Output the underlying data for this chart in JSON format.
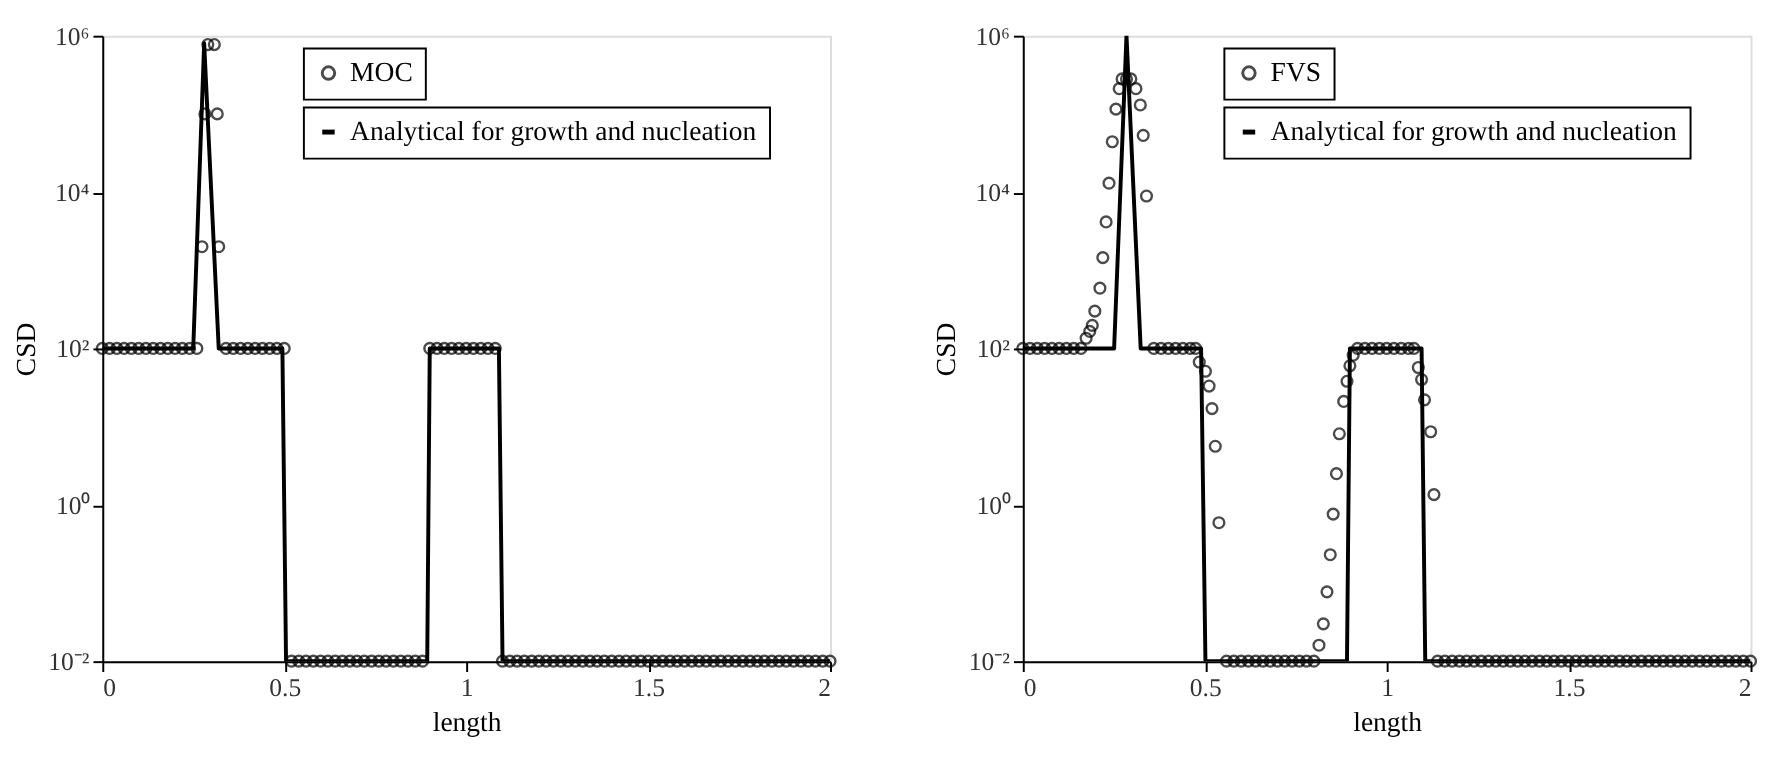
{
  "chart_data": [
    {
      "type": "scatter",
      "xlabel": "length",
      "ylabel": "CSD",
      "log": "y",
      "grid": false,
      "legend": "top right",
      "xlim": [
        0,
        2
      ],
      "xticks": [
        0,
        0.5,
        1,
        1.5,
        2
      ],
      "ylim": [
        0.01,
        1000000
      ],
      "yticks": [
        {
          "value": 0.01,
          "label": "10⁻²"
        },
        {
          "value": 1,
          "label": "10⁰"
        },
        {
          "value": 100,
          "label": "10²"
        },
        {
          "value": 10000,
          "label": "10⁴"
        },
        {
          "value": 1000000,
          "label": "10⁶"
        }
      ],
      "series": [
        {
          "name": "MOC",
          "type": "scatter",
          "color": "#000000",
          "marker": "circle",
          "x": [
            0,
            0.02,
            0.04,
            0.06,
            0.08,
            0.1,
            0.12,
            0.14,
            0.16,
            0.18,
            0.2,
            0.22,
            0.24,
            0.26,
            0.274,
            0.282,
            0.29,
            0.308,
            0.316,
            0.32,
            0.34,
            0.36,
            0.38,
            0.4,
            0.42,
            0.44,
            0.46,
            0.48,
            0.5,
            0.52,
            0.54,
            0.56,
            0.58,
            0.6,
            0.62,
            0.64,
            0.66,
            0.68,
            0.7,
            0.72,
            0.74,
            0.76,
            0.78,
            0.8,
            0.82,
            0.84,
            0.86,
            0.88,
            0.9,
            0.92,
            0.94,
            0.96,
            0.98,
            1,
            1.02,
            1.04,
            1.06,
            1.08,
            1.1,
            1.12,
            1.14,
            1.16,
            1.18,
            1.2,
            1.22,
            1.24,
            1.26,
            1.28,
            1.3,
            1.32,
            1.34,
            1.36,
            1.38,
            1.4,
            1.42,
            1.44,
            1.46,
            1.48,
            1.5,
            1.52,
            1.54,
            1.56,
            1.58,
            1.6,
            1.62,
            1.64,
            1.66,
            1.68,
            1.7,
            1.72,
            1.74,
            1.76,
            1.78,
            1.8,
            1.82,
            1.84,
            1.86,
            1.88,
            1.9,
            1.92,
            1.94,
            1.96,
            1.98,
            2
          ],
          "values": [
            100,
            100,
            100,
            100,
            100,
            100,
            100,
            100,
            100,
            100,
            100,
            100,
            100,
            100,
            2000,
            100000,
            770000,
            770000,
            100000,
            2000,
            100,
            100,
            100,
            100,
            100,
            100,
            100,
            100,
            100,
            0.01,
            0.01,
            0.01,
            0.01,
            0.01,
            0.01,
            0.01,
            0.01,
            0.01,
            0.01,
            0.01,
            0.01,
            0.01,
            0.01,
            0.01,
            0.01,
            0.01,
            0.01,
            0.01,
            100,
            100,
            100,
            100,
            100,
            100,
            100,
            100,
            100,
            100,
            0.01,
            0.01,
            0.01,
            0.01,
            0.01,
            0.01,
            0.01,
            0.01,
            0.01,
            0.01,
            0.01,
            0.01,
            0.01,
            0.01,
            0.01,
            0.01,
            0.01,
            0.01,
            0.01,
            0.01,
            0.01,
            0.01,
            0.01,
            0.01,
            0.01,
            0.01,
            0.01,
            0.01,
            0.01,
            0.01,
            0.01,
            0.01,
            0.01,
            0.01,
            0.01,
            0.01,
            0.01,
            0.01,
            0.01,
            0.01,
            0.01,
            0.01,
            0.01,
            0.01,
            0.01,
            0.01
          ]
        },
        {
          "name": "Analytical for growth and nucleation",
          "type": "line",
          "color": "#000000",
          "line_style": "solid",
          "x": [
            0,
            0.25,
            0.28,
            0.32,
            0.495,
            0.505,
            0.893,
            0.9,
            1.09,
            1.1,
            2
          ],
          "values": [
            100,
            100,
            800000,
            100,
            100,
            0.01,
            0.01,
            100,
            100,
            0.01,
            0.01
          ]
        }
      ]
    },
    {
      "type": "scatter",
      "xlabel": "length",
      "ylabel": "CSD",
      "log": "y",
      "grid": false,
      "legend": "top right",
      "xlim": [
        0,
        2
      ],
      "xticks": [
        0,
        0.5,
        1,
        1.5,
        2
      ],
      "ylim": [
        0.01,
        1000000
      ],
      "yticks": [
        {
          "value": 0.01,
          "label": "10⁻²"
        },
        {
          "value": 1,
          "label": "10⁰"
        },
        {
          "value": 100,
          "label": "10²"
        },
        {
          "value": 10000,
          "label": "10⁴"
        },
        {
          "value": 1000000,
          "label": "10⁶"
        }
      ],
      "series": [
        {
          "name": "FVS",
          "type": "scatter",
          "color": "#000000",
          "marker": "circle",
          "x": [
            0,
            0.02,
            0.04,
            0.06,
            0.08,
            0.1,
            0.12,
            0.14,
            0.16,
            0.174,
            0.184,
            0.191,
            0.198,
            0.212,
            0.22,
            0.229,
            0.237,
            0.246,
            0.256,
            0.265,
            0.273,
            0.285,
            0.297,
            0.311,
            0.323,
            0.331,
            0.34,
            0.36,
            0.38,
            0.4,
            0.42,
            0.44,
            0.46,
            0.475,
            0.485,
            0.502,
            0.512,
            0.52,
            0.529,
            0.539,
            0.56,
            0.58,
            0.6,
            0.62,
            0.64,
            0.66,
            0.68,
            0.7,
            0.72,
            0.74,
            0.76,
            0.78,
            0.8,
            0.814,
            0.826,
            0.836,
            0.845,
            0.853,
            0.862,
            0.87,
            0.882,
            0.891,
            0.899,
            0.908,
            0.92,
            0.94,
            0.96,
            0.98,
            1,
            1.02,
            1.04,
            1.06,
            1.075,
            1.087,
            1.096,
            1.104,
            1.121,
            1.13,
            1.14,
            1.16,
            1.18,
            1.2,
            1.22,
            1.24,
            1.26,
            1.28,
            1.3,
            1.32,
            1.34,
            1.36,
            1.38,
            1.4,
            1.42,
            1.44,
            1.46,
            1.48,
            1.5,
            1.52,
            1.54,
            1.56,
            1.58,
            1.6,
            1.62,
            1.64,
            1.66,
            1.68,
            1.7,
            1.72,
            1.74,
            1.76,
            1.78,
            1.8,
            1.82,
            1.84,
            1.86,
            1.88,
            1.9,
            1.92,
            1.94,
            1.96,
            1.98,
            2
          ],
          "values": [
            100,
            100,
            100,
            100,
            100,
            100,
            100,
            100,
            100,
            135,
            165,
            197,
            300,
            590,
            1450,
            4150,
            13000,
            44000,
            115000,
            210000,
            280000,
            280000,
            280000,
            210000,
            130000,
            53000,
            8900,
            100,
            100,
            100,
            100,
            100,
            100,
            100,
            67,
            51,
            33,
            17,
            5.6,
            0.59,
            0.01,
            0.01,
            0.01,
            0.01,
            0.01,
            0.01,
            0.01,
            0.01,
            0.01,
            0.01,
            0.01,
            0.01,
            0.01,
            0.016,
            0.03,
            0.077,
            0.23,
            0.76,
            2.5,
            8.1,
            21,
            38,
            60,
            82,
            100,
            100,
            100,
            100,
            100,
            100,
            100,
            100,
            100,
            57,
            40,
            22,
            8.6,
            1.35,
            0.01,
            0.01,
            0.01,
            0.01,
            0.01,
            0.01,
            0.01,
            0.01,
            0.01,
            0.01,
            0.01,
            0.01,
            0.01,
            0.01,
            0.01,
            0.01,
            0.01,
            0.01,
            0.01,
            0.01,
            0.01,
            0.01,
            0.01,
            0.01,
            0.01,
            0.01,
            0.01,
            0.01,
            0.01,
            0.01,
            0.01,
            0.01,
            0.01,
            0.01,
            0.01,
            0.01,
            0.01,
            0.01,
            0.01,
            0.01,
            0.01,
            0.01,
            0.01,
            0.01
          ]
        },
        {
          "name": "Analytical for growth and nucleation",
          "type": "line",
          "color": "#000000",
          "line_style": "solid",
          "x": [
            0,
            0.251,
            0.285,
            0.324,
            0.49,
            0.502,
            0.891,
            0.899,
            1.096,
            1.106,
            2
          ],
          "values": [
            100,
            100,
            1000000,
            100,
            100,
            0.01,
            0.01,
            100,
            100,
            0.01,
            0.01
          ]
        }
      ]
    }
  ]
}
